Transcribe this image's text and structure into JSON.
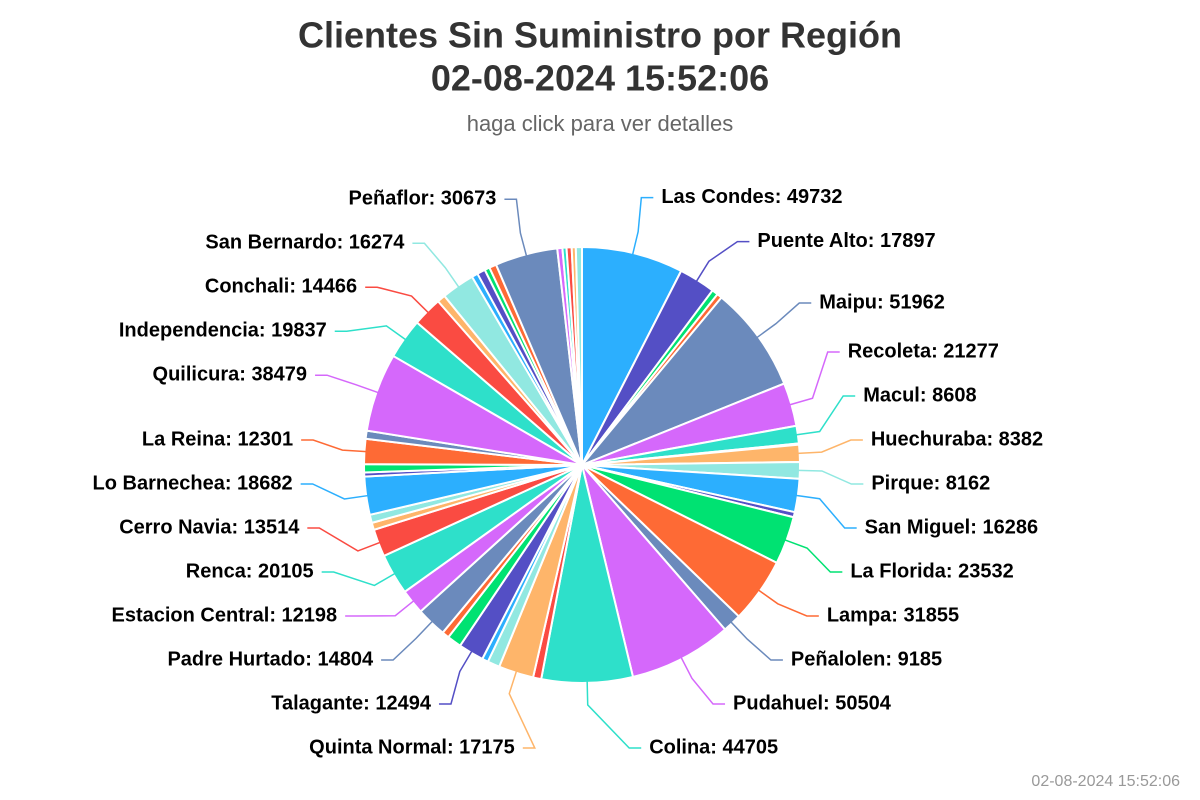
{
  "chart_data": {
    "type": "pie",
    "title": "Clientes Sin Suministro por Región",
    "title_line2": "02-08-2024 15:52:06",
    "subtitle": "haga click para ver detalles",
    "credits": "02-08-2024 15:52:06",
    "colors": [
      "#2caffe",
      "#544fc5",
      "#00e272",
      "#fe6a35",
      "#6b8abc",
      "#d568fb",
      "#2ee0ca",
      "#fa4b42",
      "#feb56a",
      "#91e8e1"
    ],
    "values": [
      49732,
      17897,
      3000,
      2500,
      51962,
      21277,
      8608,
      600,
      8382,
      8162,
      16286,
      2500,
      23532,
      31855,
      9185,
      50504,
      44705,
      4000,
      17175,
      6000,
      3000,
      12494,
      7000,
      3500,
      14804,
      12198,
      20105,
      13514,
      3500,
      4000,
      18682,
      2000,
      4000,
      12301,
      4000,
      38479,
      19837,
      14466,
      4000,
      16274,
      3000,
      4000,
      2500,
      3500,
      30673,
      2500,
      2000,
      2500,
      2000,
      3000
    ],
    "value_labels": [
      "Las Condes: 49732",
      "Puente Alto: 17897",
      null,
      null,
      "Maipu: 51962",
      "Recoleta: 21277",
      "Macul: 8608",
      null,
      "Huechuraba: 8382",
      "Pirque: 8162",
      "San Miguel: 16286",
      null,
      "La Florida: 23532",
      "Lampa: 31855",
      "Peñalolen: 9185",
      "Pudahuel: 50504",
      "Colina: 44705",
      null,
      "Quinta Normal: 17175",
      null,
      null,
      "Talagante: 12494",
      null,
      null,
      "Padre Hurtado: 14804",
      "Estacion Central: 12198",
      "Renca: 20105",
      "Cerro Navia: 13514",
      null,
      null,
      "Lo Barnechea: 18682",
      null,
      null,
      "La Reina: 12301",
      null,
      "Quilicura: 38479",
      "Independencia: 19837",
      "Conchali: 14466",
      null,
      "San Bernardo: 16274",
      null,
      null,
      null,
      null,
      "Peñaflor: 30673",
      null,
      null,
      null,
      null,
      null
    ]
  }
}
